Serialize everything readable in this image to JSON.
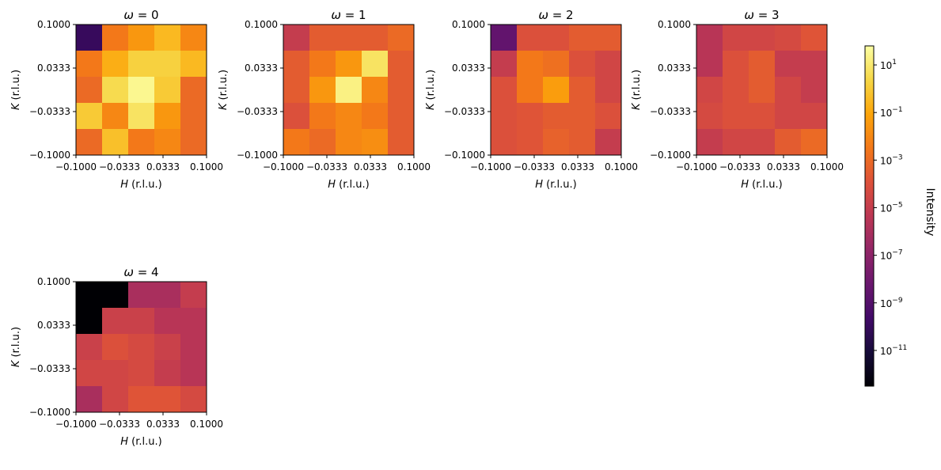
{
  "chart_data": {
    "type": "heatmap",
    "colormap": "inferno",
    "scale": "log",
    "clim_exp": [
      -12.5,
      1.8
    ],
    "x_ticks": [
      "−0.1000",
      "−0.0333",
      "0.0333",
      "0.1000"
    ],
    "y_ticks": [
      "0.1000",
      "0.0333",
      "−0.0333",
      "−0.1000"
    ],
    "xlabel_italic": "H",
    "xlabel_unit": " (r.l.u.)",
    "ylabel_italic": "K",
    "ylabel_unit": " (r.l.u.)",
    "colorbar": {
      "label": "Intensity",
      "ticks": [
        "10",
        "10",
        "10",
        "10",
        "10",
        "10",
        "10"
      ],
      "tick_exponents": [
        "1",
        "−1",
        "−3",
        "−5",
        "−7",
        "−9",
        "−11"
      ]
    },
    "panels": [
      {
        "title_var": "ω",
        "title_value": " = 0",
        "grid_log10": [
          [
            -10.0,
            -2.5,
            -1.5,
            -0.5,
            -2.0
          ],
          [
            -2.5,
            -0.8,
            0.2,
            0.2,
            -0.5
          ],
          [
            -3.0,
            0.5,
            1.5,
            0.0,
            -3.0
          ],
          [
            0.0,
            -2.0,
            0.8,
            -1.5,
            -3.0
          ],
          [
            -3.0,
            -0.3,
            -2.5,
            -2.0,
            -3.0
          ]
        ]
      },
      {
        "title_var": "ω",
        "title_value": " = 1",
        "grid_log10": [
          [
            -5.0,
            -3.5,
            -3.5,
            -3.5,
            -3.0
          ],
          [
            -3.5,
            -2.5,
            -1.5,
            0.8,
            -3.5
          ],
          [
            -3.5,
            -1.5,
            1.3,
            -2.0,
            -3.5
          ],
          [
            -4.0,
            -2.5,
            -2.0,
            -2.5,
            -3.5
          ],
          [
            -2.5,
            -3.0,
            -2.0,
            -1.8,
            -3.5
          ]
        ]
      },
      {
        "title_var": "ω",
        "title_value": " = 2",
        "grid_log10": [
          [
            -8.5,
            -4.0,
            -4.0,
            -3.5,
            -3.5
          ],
          [
            -5.0,
            -2.5,
            -2.8,
            -4.0,
            -4.5
          ],
          [
            -4.0,
            -2.5,
            -1.3,
            -3.5,
            -4.5
          ],
          [
            -4.0,
            -3.8,
            -3.5,
            -3.5,
            -4.0
          ],
          [
            -4.0,
            -3.8,
            -3.3,
            -3.5,
            -5.0
          ]
        ]
      },
      {
        "title_var": "ω",
        "title_value": " = 3",
        "grid_log10": [
          [
            -5.5,
            -4.5,
            -4.5,
            -4.3,
            -3.8
          ],
          [
            -5.5,
            -4.0,
            -3.5,
            -5.0,
            -5.0
          ],
          [
            -4.5,
            -4.0,
            -3.5,
            -4.5,
            -5.0
          ],
          [
            -4.3,
            -4.0,
            -4.0,
            -4.5,
            -4.5
          ],
          [
            -5.0,
            -4.5,
            -4.5,
            -3.5,
            -3.0
          ]
        ]
      },
      {
        "title_var": "ω",
        "title_value": " = 4",
        "grid_log10": [
          [
            -13.0,
            -13.0,
            -6.0,
            -6.0,
            -5.0
          ],
          [
            -13.0,
            -4.8,
            -4.8,
            -5.5,
            -5.5
          ],
          [
            -4.8,
            -4.0,
            -4.3,
            -4.8,
            -5.5
          ],
          [
            -4.5,
            -4.5,
            -4.3,
            -5.0,
            -5.5
          ],
          [
            -6.0,
            -4.5,
            -3.8,
            -3.8,
            -4.3
          ]
        ]
      }
    ]
  }
}
